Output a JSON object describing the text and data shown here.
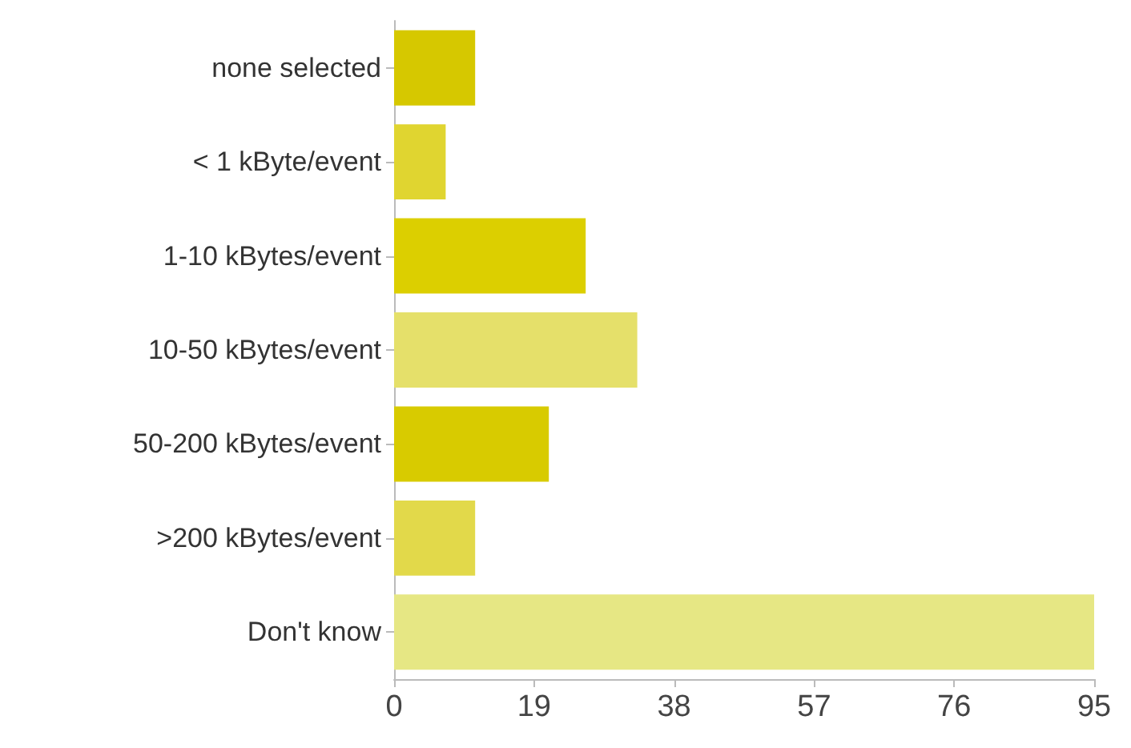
{
  "chart_data": {
    "type": "bar",
    "orientation": "horizontal",
    "categories": [
      "none selected",
      "< 1 kByte/event",
      "1-10 kBytes/event",
      "10-50 kBytes/event",
      "50-200 kBytes/event",
      ">200 kBytes/event",
      "Don't know"
    ],
    "values": [
      11,
      7,
      26,
      33,
      21,
      11,
      95
    ],
    "colors": [
      "#d6c800",
      "#e0d530",
      "#dccf00",
      "#e5e06a",
      "#d8cb00",
      "#e2d94a",
      "#e6e784"
    ],
    "xlim": [
      0,
      95
    ],
    "xticks": [
      0,
      19,
      38,
      57,
      76,
      95
    ],
    "grid": false
  }
}
